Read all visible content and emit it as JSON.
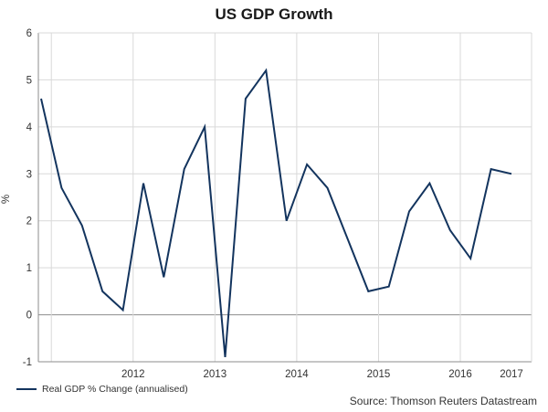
{
  "chart_data": {
    "type": "line",
    "title": "US GDP Growth",
    "xlabel": "",
    "ylabel": "%",
    "ylim": [
      -1,
      6
    ],
    "yticks": [
      -1,
      0,
      1,
      2,
      3,
      4,
      5,
      6
    ],
    "year_labels": [
      "2012",
      "2013",
      "2014",
      "2015",
      "2016",
      "2017"
    ],
    "grid": true,
    "legend_position": "bottom-left",
    "series": [
      {
        "name": "Real GDP % Change (annualised)",
        "color": "#13345e",
        "values": [
          4.6,
          2.7,
          1.9,
          0.5,
          0.1,
          2.8,
          0.8,
          3.1,
          4.0,
          -0.9,
          4.6,
          5.2,
          2.0,
          3.2,
          2.7,
          1.6,
          0.5,
          0.6,
          2.2,
          2.8,
          1.8,
          1.2,
          3.1,
          3.0
        ]
      }
    ]
  },
  "source": "Source: Thomson Reuters Datastream",
  "colors": {
    "line": "#13345e",
    "grid": "#d9d9d9",
    "axis": "#8c8c8c",
    "zero_line": "#9a9a9a"
  }
}
